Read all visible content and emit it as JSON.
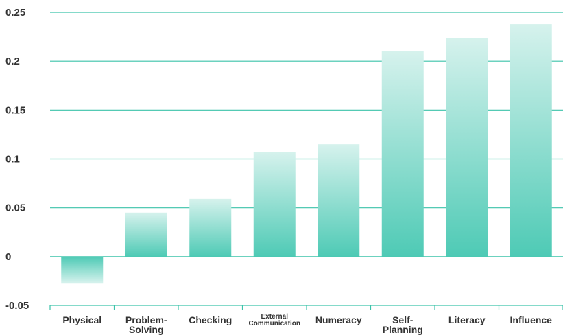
{
  "chart_data": {
    "type": "bar",
    "title": "",
    "xlabel": "",
    "ylabel": "",
    "categories": [
      "Physical",
      "Problem-Solving",
      "Checking",
      "External Communication",
      "Numeracy",
      "Self-Planning",
      "Literacy",
      "Influence"
    ],
    "category_lines": [
      [
        "Physical"
      ],
      [
        "Problem-",
        "Solving"
      ],
      [
        "Checking"
      ],
      [
        "External",
        "Communication"
      ],
      [
        "Numeracy"
      ],
      [
        "Self-",
        "Planning"
      ],
      [
        "Literacy"
      ],
      [
        "Influence"
      ]
    ],
    "values": [
      -0.027,
      0.045,
      0.059,
      0.107,
      0.115,
      0.21,
      0.224,
      0.238
    ],
    "ylim": [
      -0.05,
      0.25
    ],
    "yticks": [
      -0.05,
      0,
      0.05,
      0.1,
      0.15,
      0.2,
      0.25
    ],
    "ytick_labels": [
      "-0.05",
      "0",
      "0.05",
      "0.1",
      "0.15",
      "0.2",
      "0.25"
    ],
    "grid": true,
    "colors": {
      "bar_dark": "#4ecab5",
      "bar_light": "#d6f2ed",
      "grid": "#3cc3aa",
      "text": "#333333"
    }
  }
}
